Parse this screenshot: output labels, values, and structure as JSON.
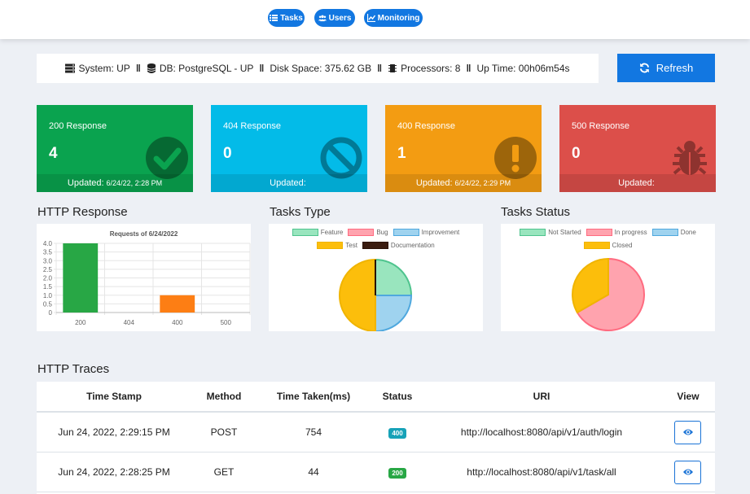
{
  "nav": {
    "tasks": "Tasks",
    "users": "Users",
    "monitoring": "Monitoring"
  },
  "system": {
    "status": "System: UP",
    "db": "DB: PostgreSQL - UP",
    "disk": "Disk Space: 375.62 GB",
    "processors": "Processors: 8",
    "uptime": "Up Time: 00h06m54s"
  },
  "refresh_label": "Refresh",
  "cards": [
    {
      "title": "200 Response",
      "value": "4",
      "updated_label": "Updated:",
      "updated_time": "6/24/22, 2:28 PM",
      "color": "#0aa34f",
      "icon": "check-circle-icon"
    },
    {
      "title": "404 Response",
      "value": "0",
      "updated_label": "Updated:",
      "updated_time": "",
      "color": "#03bbe8",
      "icon": "ban-icon"
    },
    {
      "title": "400 Response",
      "value": "1",
      "updated_label": "Updated:",
      "updated_time": "6/24/22, 2:29 PM",
      "color": "#f39c12",
      "icon": "exclamation-circle-icon"
    },
    {
      "title": "500 Response",
      "value": "0",
      "updated_label": "Updated:",
      "updated_time": "",
      "color": "#dc4f4a",
      "icon": "bug-icon"
    }
  ],
  "sections": {
    "http_response": "HTTP Response",
    "tasks_type": "Tasks Type",
    "tasks_status": "Tasks Status",
    "http_traces": "HTTP Traces"
  },
  "chart_data": [
    {
      "type": "bar",
      "title": "Requests of 6/24/2022",
      "categories": [
        "200",
        "404",
        "400",
        "500"
      ],
      "values": [
        4,
        0,
        1,
        0
      ],
      "colors": [
        "#28a745",
        "#17a2b8",
        "#fd7e14",
        "#dc3545"
      ],
      "ylim": [
        0,
        4
      ],
      "yticks": [
        "4.0",
        "3.5",
        "3.0",
        "2.5",
        "2.0",
        "1.5",
        "1.0",
        "0.5",
        "0"
      ],
      "grid": true
    },
    {
      "type": "pie",
      "labels": [
        "Feature",
        "Bug",
        "Improvement",
        "Test",
        "Documentation"
      ],
      "values": [
        1,
        0,
        1,
        2,
        0
      ],
      "colors": [
        "#99e5be",
        "#ffa3ae",
        "#9fd3ef",
        "#fcbe0b",
        "#3a1c10"
      ],
      "borders": [
        "#4fc48e",
        "#ff6b80",
        "#4fa8de",
        "#f0b400",
        "#2a1208"
      ],
      "legend": "top"
    },
    {
      "type": "pie",
      "labels": [
        "Not Started",
        "In progress",
        "Done",
        "Closed"
      ],
      "values": [
        0,
        2,
        0,
        1
      ],
      "colors": [
        "#99e5be",
        "#ffa3ae",
        "#9fd3ef",
        "#fcbe0b"
      ],
      "borders": [
        "#4fc48e",
        "#ff6b80",
        "#4fa8de",
        "#f0b400"
      ],
      "legend": "top"
    }
  ],
  "traces": {
    "headers": [
      "Time Stamp",
      "Method",
      "Time Taken(ms)",
      "Status",
      "URI",
      "View"
    ],
    "rows": [
      {
        "timestamp": "Jun 24, 2022, 2:29:15 PM",
        "method": "POST",
        "time_taken": "754",
        "status": "400",
        "status_color": "#17a2b8",
        "uri": "http://localhost:8080/api/v1/auth/login"
      },
      {
        "timestamp": "Jun 24, 2022, 2:28:25 PM",
        "method": "GET",
        "time_taken": "44",
        "status": "200",
        "status_color": "#28a745",
        "uri": "http://localhost:8080/api/v1/task/all"
      }
    ]
  }
}
